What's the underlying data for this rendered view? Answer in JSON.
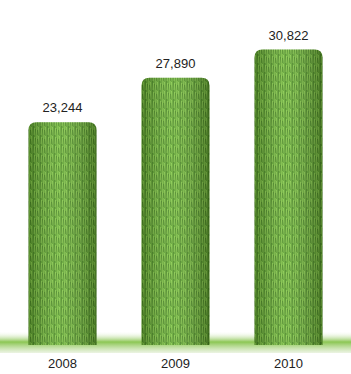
{
  "chart_data": {
    "type": "bar",
    "categories": [
      "2008",
      "2009",
      "2010"
    ],
    "values": [
      23244,
      27890,
      30822
    ],
    "value_labels": [
      "23,244",
      "27,890",
      "30,822"
    ],
    "color": "#5fa52e",
    "ylim": [
      0,
      36000
    ],
    "data_labels": true,
    "tick_labels": "x",
    "grid": false
  }
}
